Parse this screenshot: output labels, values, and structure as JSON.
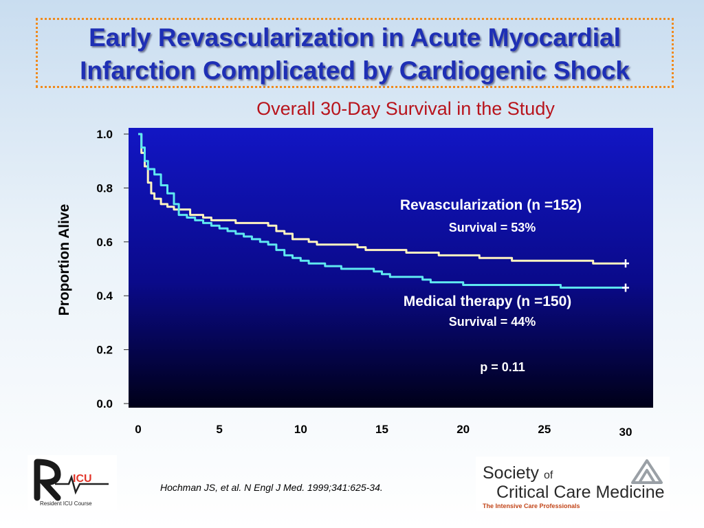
{
  "title_line1": "Early Revascularization in Acute Myocardial",
  "title_line2": "Infarction Complicated by Cardiogenic Shock",
  "citation": "Hochman JS, et al. N Engl J Med. 1999;341:625-34.",
  "logos": {
    "ricu_text": "Resident ICU Course",
    "sccm_society": "Society",
    "sccm_of": "of",
    "sccm_name": "Critical Care Medicine",
    "sccm_tagline": "The Intensive Care Professionals"
  },
  "colors": {
    "title": "#1e2fb5",
    "subtitle": "#b8141c",
    "border": "#f08a1c",
    "revasc_line": "#fff4c0",
    "medical_line": "#5fe8f0"
  },
  "chart_data": {
    "type": "line",
    "title": "Overall 30-Day Survival in the Study",
    "ylabel": "Proportion Alive",
    "xlabel": "",
    "x_ticks": [
      "0",
      "5",
      "10",
      "15",
      "20",
      "25",
      "30"
    ],
    "y_ticks": [
      "0.0",
      "0.2",
      "0.4",
      "0.6",
      "0.8",
      "1.0"
    ],
    "xlim": [
      0,
      30
    ],
    "ylim": [
      0,
      1.0
    ],
    "series": [
      {
        "name": "Revascularization (n =152)",
        "annotation": "Survival = 53%",
        "color": "#fff4c0",
        "points": [
          [
            0,
            1.0
          ],
          [
            0.2,
            0.93
          ],
          [
            0.4,
            0.88
          ],
          [
            0.6,
            0.82
          ],
          [
            0.8,
            0.78
          ],
          [
            1.0,
            0.76
          ],
          [
            1.4,
            0.74
          ],
          [
            1.8,
            0.73
          ],
          [
            2.2,
            0.72
          ],
          [
            3.2,
            0.7
          ],
          [
            4.0,
            0.69
          ],
          [
            4.5,
            0.68
          ],
          [
            5.0,
            0.68
          ],
          [
            6.0,
            0.67
          ],
          [
            7.0,
            0.67
          ],
          [
            8.0,
            0.66
          ],
          [
            8.5,
            0.64
          ],
          [
            9.0,
            0.63
          ],
          [
            9.5,
            0.61
          ],
          [
            10.0,
            0.61
          ],
          [
            10.5,
            0.6
          ],
          [
            11.0,
            0.59
          ],
          [
            12.0,
            0.59
          ],
          [
            13.0,
            0.59
          ],
          [
            13.5,
            0.58
          ],
          [
            14.0,
            0.57
          ],
          [
            15.0,
            0.57
          ],
          [
            16.0,
            0.57
          ],
          [
            16.5,
            0.56
          ],
          [
            18.0,
            0.56
          ],
          [
            18.5,
            0.55
          ],
          [
            20.0,
            0.55
          ],
          [
            21.0,
            0.54
          ],
          [
            22.5,
            0.54
          ],
          [
            23.0,
            0.53
          ],
          [
            27.0,
            0.53
          ],
          [
            28.0,
            0.52
          ],
          [
            30.0,
            0.52
          ]
        ]
      },
      {
        "name": "Medical therapy (n =150)",
        "annotation": "Survival = 44%",
        "color": "#5fe8f0",
        "points": [
          [
            0,
            1.0
          ],
          [
            0.2,
            0.95
          ],
          [
            0.4,
            0.9
          ],
          [
            0.6,
            0.87
          ],
          [
            1.0,
            0.85
          ],
          [
            1.4,
            0.81
          ],
          [
            1.8,
            0.78
          ],
          [
            2.2,
            0.74
          ],
          [
            2.5,
            0.7
          ],
          [
            3.0,
            0.69
          ],
          [
            3.5,
            0.68
          ],
          [
            4.0,
            0.67
          ],
          [
            4.5,
            0.66
          ],
          [
            5.0,
            0.65
          ],
          [
            5.5,
            0.64
          ],
          [
            6.0,
            0.63
          ],
          [
            6.5,
            0.62
          ],
          [
            7.0,
            0.61
          ],
          [
            7.5,
            0.6
          ],
          [
            8.0,
            0.59
          ],
          [
            8.5,
            0.57
          ],
          [
            9.0,
            0.55
          ],
          [
            9.5,
            0.54
          ],
          [
            10.0,
            0.53
          ],
          [
            10.5,
            0.52
          ],
          [
            11.0,
            0.52
          ],
          [
            11.5,
            0.51
          ],
          [
            12.0,
            0.51
          ],
          [
            12.5,
            0.5
          ],
          [
            14.0,
            0.5
          ],
          [
            14.5,
            0.49
          ],
          [
            15.0,
            0.48
          ],
          [
            15.5,
            0.47
          ],
          [
            17.0,
            0.47
          ],
          [
            17.5,
            0.46
          ],
          [
            18.0,
            0.45
          ],
          [
            19.0,
            0.45
          ],
          [
            20.0,
            0.44
          ],
          [
            25.0,
            0.44
          ],
          [
            26.0,
            0.43
          ],
          [
            30.0,
            0.43
          ]
        ]
      }
    ],
    "annotations": [
      "p = 0.11"
    ]
  }
}
